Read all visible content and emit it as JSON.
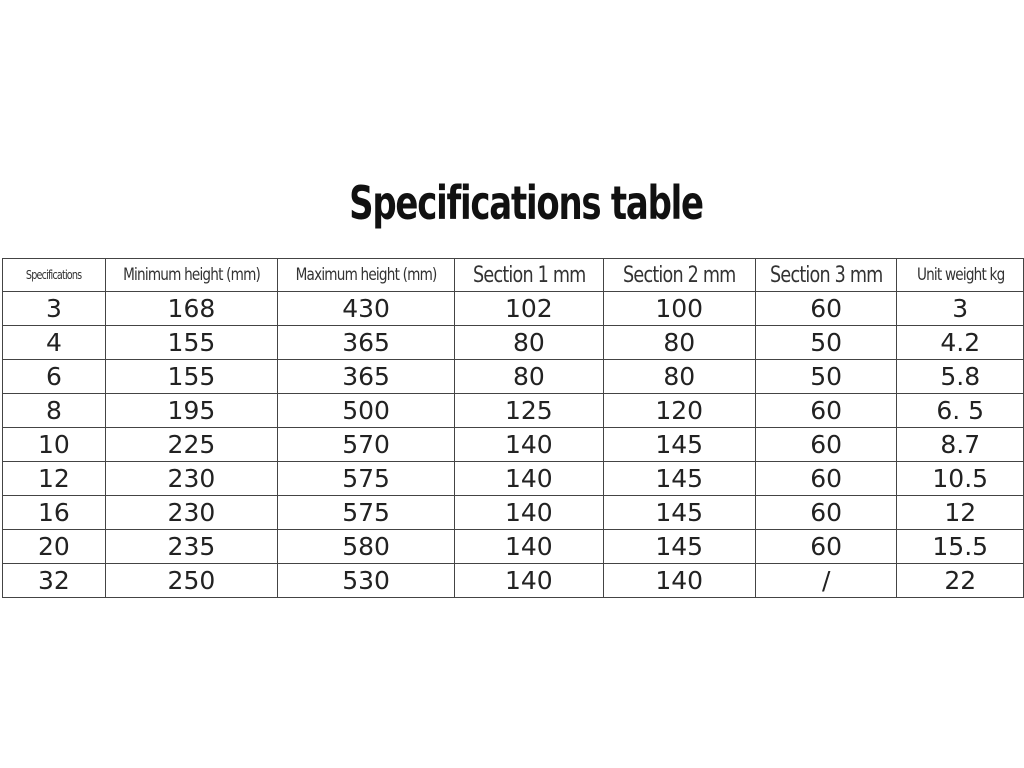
{
  "title": "Specifications table",
  "columns": [
    "Specifications",
    "Minimum height (mm)",
    "Maximum height (mm)",
    "Section 1 mm",
    "Section 2 mm",
    "Section 3 mm",
    "Unit weight kg"
  ],
  "rows": [
    [
      "3",
      "168",
      "430",
      "102",
      "100",
      "60",
      "3"
    ],
    [
      "4",
      "155",
      "365",
      "80",
      "80",
      "50",
      "4.2"
    ],
    [
      "6",
      "155",
      "365",
      "80",
      "80",
      "50",
      "5.8"
    ],
    [
      "8",
      "195",
      "500",
      "125",
      "120",
      "60",
      "6. 5"
    ],
    [
      "10",
      "225",
      "570",
      "140",
      "145",
      "60",
      "8.7"
    ],
    [
      "12",
      "230",
      "575",
      "140",
      "145",
      "60",
      "10.5"
    ],
    [
      "16",
      "230",
      "575",
      "140",
      "145",
      "60",
      "12"
    ],
    [
      "20",
      "235",
      "580",
      "140",
      "145",
      "60",
      "15.5"
    ],
    [
      "32",
      "250",
      "530",
      "140",
      "140",
      "/",
      "22"
    ]
  ]
}
